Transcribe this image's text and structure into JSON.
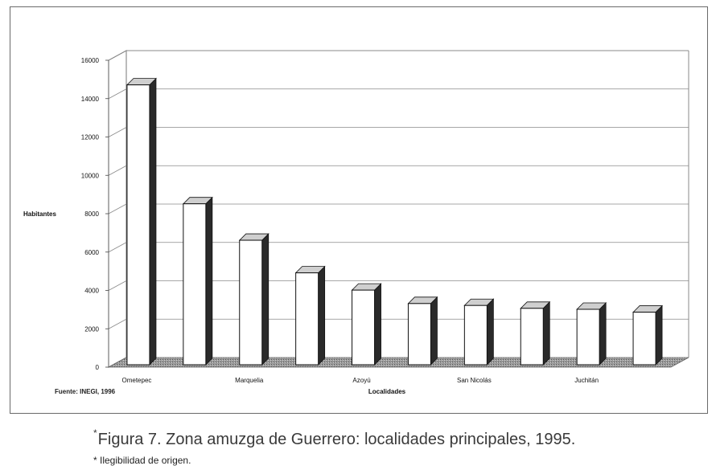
{
  "chart_data": {
    "type": "bar",
    "style": "3d-column",
    "categories": [
      "Ometepec",
      "",
      "Marquelia",
      "",
      "Azoyú",
      "",
      "San Nicolás",
      "",
      "Juchitán",
      ""
    ],
    "values": [
      14800,
      8600,
      6700,
      5000,
      4100,
      3400,
      3300,
      3150,
      3100,
      2950
    ],
    "ylabel": "Habitantes",
    "xlabel": "Localidades",
    "ylim": [
      0,
      16000
    ],
    "yticks": [
      0,
      2000,
      4000,
      6000,
      8000,
      10000,
      12000,
      14000,
      16000
    ],
    "grid": true,
    "legend": "none",
    "colors": {
      "bar_front": "#ffffff",
      "bar_side": "#2a2a2a",
      "bar_top": "#cfcfcf",
      "floor": "#8c8c8c",
      "grid": "#8a8a8a"
    }
  },
  "source": "Fuente: INEGI, 1996",
  "caption": {
    "marker": "*",
    "text": "Figura 7. Zona amuzga de Guerrero: localidades principales, 1995."
  },
  "note": "* Ilegibilidad de origen."
}
